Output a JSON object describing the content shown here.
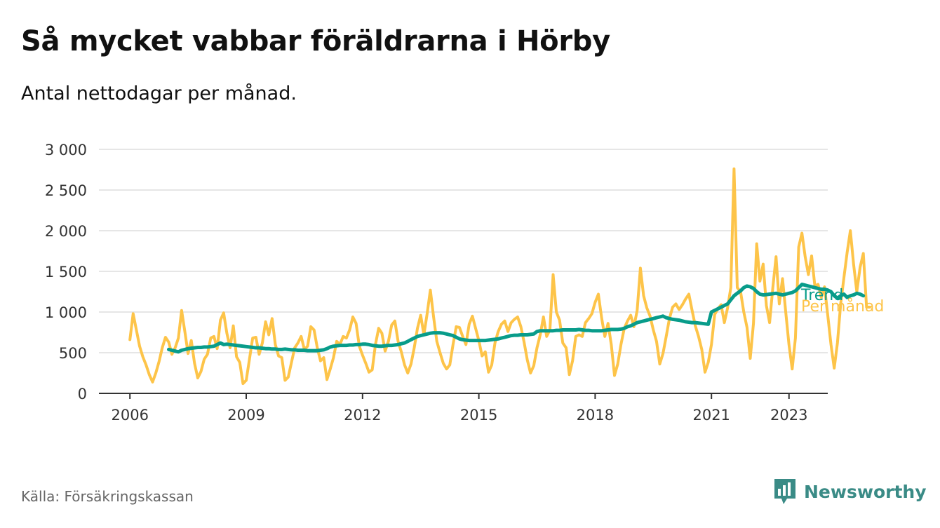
{
  "title": "Så mycket vabbar föräldrarna i Hörby",
  "subtitle": "Antal nettodagar per månad.",
  "source": "Källa: Försäkringskassan",
  "brand": "Newsworthy",
  "colors": {
    "monthly": "#fdc449",
    "trend": "#089c8a",
    "brand": "#3a8b86",
    "grid": "#dddddd"
  },
  "chart_data": {
    "type": "line",
    "ylim": [
      0,
      3000
    ],
    "yticks": [
      0,
      500,
      1000,
      1500,
      2000,
      2500,
      3000
    ],
    "ytick_labels": [
      "0",
      "500",
      "1 000",
      "1 500",
      "2 000",
      "2 500",
      "3 000"
    ],
    "xticks": [
      2006,
      2009,
      2012,
      2015,
      2018,
      2021,
      2023
    ],
    "xtick_labels": [
      "2006",
      "2009",
      "2012",
      "2015",
      "2018",
      "2021",
      "2023"
    ],
    "xlim": [
      2005.2,
      2024.0
    ],
    "series": [
      {
        "name": "Per månad",
        "start": 2006.0,
        "step": 0.0833333,
        "values": [
          660,
          980,
          780,
          580,
          450,
          350,
          230,
          140,
          250,
          390,
          560,
          690,
          630,
          480,
          560,
          680,
          1020,
          760,
          490,
          650,
          370,
          190,
          270,
          420,
          480,
          680,
          700,
          550,
          900,
          990,
          740,
          560,
          830,
          450,
          380,
          120,
          160,
          420,
          680,
          690,
          480,
          620,
          880,
          720,
          920,
          600,
          460,
          440,
          160,
          200,
          380,
          560,
          620,
          700,
          540,
          580,
          820,
          780,
          560,
          400,
          440,
          170,
          300,
          440,
          640,
          600,
          700,
          680,
          780,
          940,
          860,
          580,
          470,
          370,
          260,
          290,
          600,
          800,
          740,
          520,
          640,
          840,
          890,
          640,
          510,
          350,
          250,
          360,
          560,
          800,
          960,
          720,
          980,
          1270,
          940,
          640,
          500,
          370,
          300,
          350,
          600,
          820,
          810,
          700,
          600,
          850,
          950,
          800,
          650,
          460,
          510,
          260,
          350,
          620,
          760,
          850,
          890,
          760,
          870,
          910,
          940,
          820,
          630,
          410,
          250,
          340,
          560,
          720,
          940,
          700,
          780,
          1460,
          1000,
          900,
          620,
          560,
          230,
          400,
          700,
          720,
          700,
          870,
          920,
          980,
          1120,
          1220,
          930,
          700,
          860,
          600,
          220,
          360,
          600,
          800,
          890,
          960,
          820,
          1020,
          1540,
          1200,
          1050,
          950,
          780,
          640,
          360,
          490,
          700,
          920,
          1060,
          1100,
          1030,
          1090,
          1160,
          1220,
          1020,
          830,
          700,
          540,
          260,
          380,
          600,
          970,
          1040,
          1090,
          870,
          1050,
          1300,
          2760,
          1300,
          1250,
          1000,
          810,
          430,
          860,
          1840,
          1380,
          1590,
          1080,
          870,
          1300,
          1680,
          1100,
          1410,
          1000,
          600,
          300,
          680,
          1800,
          1970,
          1680,
          1460,
          1690,
          1320,
          1340,
          1180,
          1310,
          960,
          600,
          310,
          620,
          1100,
          1420,
          1730,
          2000,
          1590,
          1250,
          1550,
          1720,
          1060,
          1060
        ]
      },
      {
        "name": "Trend",
        "start": 2007.0,
        "step": 0.0833333,
        "values": [
          540,
          530,
          520,
          510,
          530,
          540,
          550,
          555,
          560,
          565,
          565,
          570,
          570,
          575,
          580,
          600,
          620,
          600,
          605,
          600,
          595,
          590,
          585,
          580,
          575,
          570,
          565,
          560,
          560,
          555,
          550,
          550,
          545,
          545,
          540,
          540,
          545,
          540,
          535,
          535,
          530,
          530,
          530,
          525,
          525,
          525,
          525,
          530,
          535,
          550,
          570,
          580,
          585,
          590,
          590,
          590,
          595,
          595,
          600,
          600,
          605,
          605,
          600,
          590,
          585,
          580,
          580,
          585,
          590,
          590,
          595,
          600,
          610,
          620,
          640,
          660,
          680,
          700,
          710,
          720,
          730,
          740,
          745,
          745,
          745,
          740,
          730,
          720,
          710,
          690,
          670,
          660,
          655,
          650,
          650,
          650,
          650,
          650,
          650,
          655,
          660,
          665,
          670,
          680,
          690,
          700,
          710,
          715,
          715,
          720,
          720,
          720,
          725,
          730,
          760,
          770,
          770,
          770,
          770,
          770,
          775,
          775,
          780,
          780,
          780,
          780,
          780,
          785,
          780,
          775,
          775,
          770,
          770,
          770,
          770,
          775,
          780,
          785,
          785,
          785,
          790,
          800,
          820,
          830,
          850,
          870,
          880,
          890,
          900,
          910,
          920,
          930,
          940,
          950,
          930,
          920,
          910,
          905,
          900,
          890,
          880,
          875,
          870,
          870,
          865,
          860,
          855,
          850,
          1000,
          1020,
          1040,
          1060,
          1080,
          1100,
          1150,
          1200,
          1230,
          1260,
          1300,
          1320,
          1310,
          1290,
          1250,
          1220,
          1210,
          1215,
          1220,
          1225,
          1230,
          1220,
          1210,
          1220,
          1230,
          1240,
          1260,
          1300,
          1340,
          1330,
          1320,
          1310,
          1300,
          1290,
          1280,
          1280,
          1270,
          1250,
          1200,
          1170,
          1200,
          1220,
          1180,
          1200,
          1210,
          1230,
          1220,
          1200
        ]
      }
    ],
    "legend": "inline-right"
  }
}
